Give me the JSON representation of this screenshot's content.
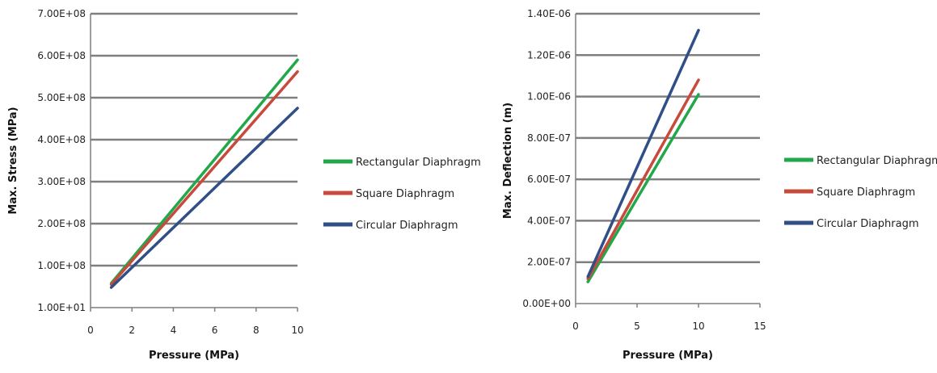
{
  "chart_data": [
    {
      "type": "line",
      "xlabel": "Pressure (MPa)",
      "ylabel": "Max. Stress (MPa)",
      "xlim": [
        0,
        10
      ],
      "ylim": [
        0,
        700000000
      ],
      "x_ticks": [
        "0",
        "2",
        "4",
        "6",
        "8",
        "10"
      ],
      "y_ticks": [
        "1.00E+01",
        "1.00E+08",
        "2.00E+08",
        "3.00E+08",
        "4.00E+08",
        "5.00E+08",
        "6.00E+08",
        "7.00E+08"
      ],
      "grid": "horizontal",
      "legend_position": "right",
      "series": [
        {
          "name": "Rectangular Diaphragm",
          "color": "#22a84a",
          "x": [
            1,
            10
          ],
          "y": [
            58000000,
            590000000
          ]
        },
        {
          "name": "Square Diaphragm",
          "color": "#c84a3c",
          "x": [
            1,
            10
          ],
          "y": [
            55000000,
            562000000
          ]
        },
        {
          "name": "Circular Diaphragm",
          "color": "#2f4f86",
          "x": [
            1,
            10
          ],
          "y": [
            48000000,
            475000000
          ]
        }
      ]
    },
    {
      "type": "line",
      "xlabel": "Pressure (MPa)",
      "ylabel": "Max. Deflection (m)",
      "xlim": [
        0,
        15
      ],
      "ylim": [
        0,
        1.4e-06
      ],
      "x_ticks": [
        "0",
        "5",
        "10",
        "15"
      ],
      "y_ticks": [
        "0.00E+00",
        "2.00E-07",
        "4.00E-07",
        "6.00E-07",
        "8.00E-07",
        "1.00E-06",
        "1.20E-06",
        "1.40E-06"
      ],
      "grid": "horizontal",
      "legend_position": "right",
      "series": [
        {
          "name": "Rectangular Diaphragm",
          "color": "#22a84a",
          "x": [
            1,
            10
          ],
          "y": [
            1.05e-07,
            1.01e-06
          ]
        },
        {
          "name": "Square Diaphragm",
          "color": "#c84a3c",
          "x": [
            1,
            10
          ],
          "y": [
            1.2e-07,
            1.08e-06
          ]
        },
        {
          "name": "Circular Diaphragm",
          "color": "#2f4f86",
          "x": [
            1,
            10
          ],
          "y": [
            1.3e-07,
            1.32e-06
          ]
        }
      ]
    }
  ]
}
